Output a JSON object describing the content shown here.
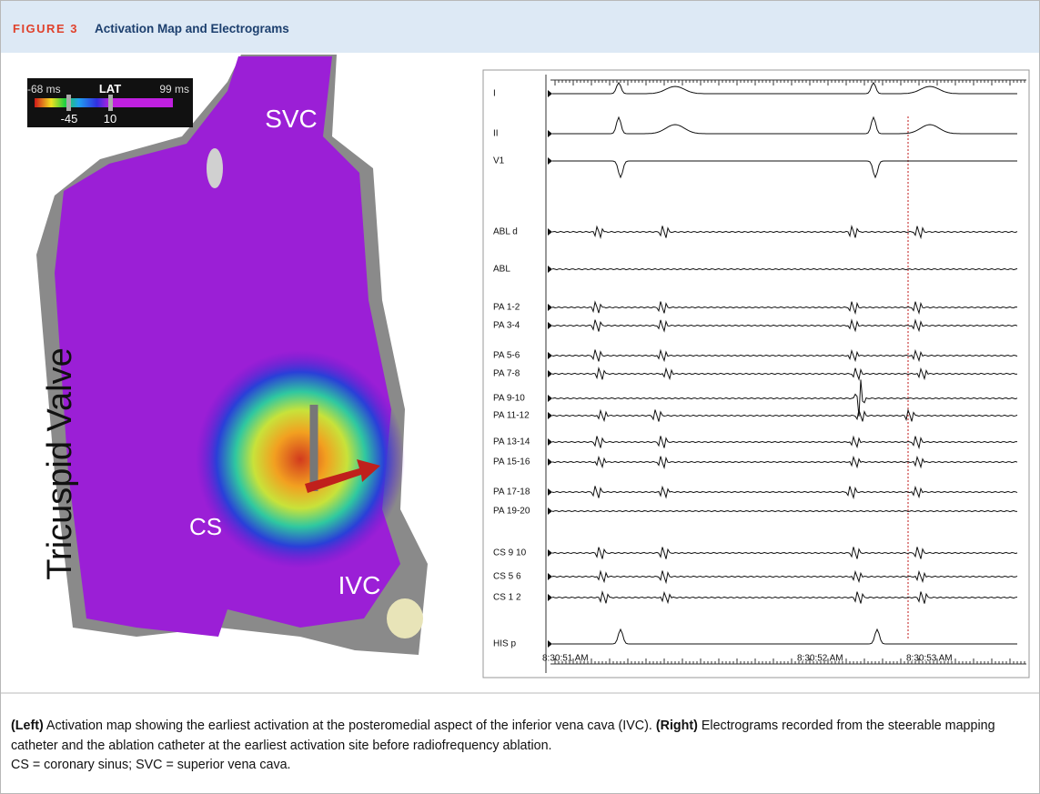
{
  "header": {
    "figure_label": "FIGURE 3",
    "title": "Activation Map and Electrograms"
  },
  "left_panel": {
    "lat_legend": {
      "min": "-68 ms",
      "label": "LAT",
      "max": "99 ms",
      "marker_1": "-45",
      "marker_2": "10"
    },
    "labels": {
      "svc": "SVC",
      "tricuspid_valve": "Tricuspid Valve",
      "cs": "CS",
      "ivc": "IVC"
    }
  },
  "right_panel": {
    "channels": [
      "I",
      "II",
      "V1",
      "ABL d",
      "ABL",
      "PA 1-2",
      "PA 3-4",
      "PA 5-6",
      "PA 7-8",
      "PA 9-10",
      "PA 11-12",
      "PA 13-14",
      "PA 15-16",
      "PA 17-18",
      "PA 19-20",
      "CS 9 10",
      "CS 5 6",
      "CS 1 2",
      "HIS p"
    ],
    "timestamps": [
      "8:30:51 AM",
      "8:30:52 AM",
      "8:30:53 AM"
    ]
  },
  "caption": {
    "left_label": "(Left)",
    "left_text": "Activation map showing the earliest activation at the posteromedial aspect of the inferior vena cava (IVC).",
    "right_label": "(Right)",
    "right_text": "Electrograms recorded from the steerable mapping catheter and the ablation catheter at the earliest activation site before radiofrequency ablation.",
    "abbreviations": "CS = coronary sinus; SVC = superior vena cava."
  }
}
